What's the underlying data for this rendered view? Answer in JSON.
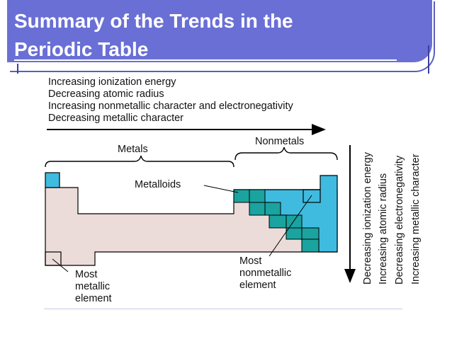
{
  "slide": {
    "title_line1": "Summary of the Trends in the",
    "title_line2": "Periodic Table"
  },
  "trends_horizontal": [
    "Increasing ionization energy",
    "Decreasing atomic radius",
    "Increasing nonmetallic character and electronegativity",
    "Decreasing metallic character"
  ],
  "trends_vertical": [
    "Decreasing ionization energy",
    "Increasing atomic radius",
    "Decreasing electronegativity",
    "Increasing metallic character"
  ],
  "labels": {
    "metals": "Metals",
    "nonmetals": "Nonmetals",
    "metalloids": "Metalloids",
    "most_metallic_line1": "Most",
    "most_metallic_line2": "metallic",
    "most_metallic_line3": "element",
    "most_nonmetallic_line1": "Most",
    "most_nonmetallic_line2": "nonmetallic",
    "most_nonmetallic_line3": "element"
  },
  "colors": {
    "title_bg": "#6a6fd6",
    "metal_fill": "#ecdcd9",
    "nonmetal_fill": "#3fbbe0",
    "metalloid_fill": "#1aa39f"
  }
}
